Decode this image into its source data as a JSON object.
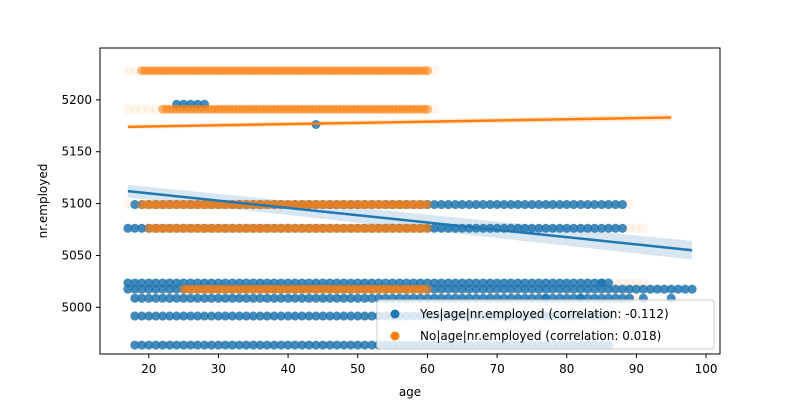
{
  "chart_data": {
    "type": "scatter",
    "title": "",
    "xlabel": "age",
    "ylabel": "nr.employed",
    "xlim": [
      13,
      102
    ],
    "ylim": [
      4955,
      5250
    ],
    "xticks": [
      20,
      30,
      40,
      50,
      60,
      70,
      80,
      90,
      100
    ],
    "yticks": [
      5000,
      5050,
      5100,
      5150,
      5200
    ],
    "grid": false,
    "legend_position": "lower-right",
    "series": [
      {
        "name": "Yes|age|nr.employed (correlation: -0.112)",
        "color": "#1f77b4",
        "bands": [
          {
            "y": 5099.1,
            "x_min": 18,
            "x_max": 88
          },
          {
            "y": 5076.2,
            "x_min": 17,
            "x_max": 88
          },
          {
            "y": 5023.5,
            "x_min": 17,
            "x_max": 86
          },
          {
            "y": 5017.5,
            "x_min": 17,
            "x_max": 98
          },
          {
            "y": 5008.7,
            "x_min": 18,
            "x_max": 89
          },
          {
            "y": 4991.6,
            "x_min": 18,
            "x_max": 86
          },
          {
            "y": 4963.6,
            "x_min": 18,
            "x_max": 86
          },
          {
            "y": 5195.8,
            "x_min": 24,
            "x_max": 28
          },
          {
            "y": 5176.3,
            "x_min": 44,
            "x_max": 44
          }
        ],
        "extra_points": [
          [
            91,
            5008.7
          ],
          [
            82,
            5008.7
          ],
          [
            77,
            5008.7
          ],
          [
            85,
            5023.5
          ],
          [
            95,
            5008.7
          ]
        ],
        "regression": {
          "x": [
            17,
            98
          ],
          "y": [
            5112,
            5055
          ],
          "ci_low": [
            5106,
            5046
          ],
          "ci_high": [
            5118,
            5064
          ]
        }
      },
      {
        "name": "No|age|nr.employed (correlation: 0.018)",
        "color": "#ff7f0e",
        "bands": [
          {
            "y": 5228.1,
            "x_min": 19,
            "x_max": 60
          },
          {
            "y": 5191.0,
            "x_min": 22,
            "x_max": 60
          },
          {
            "y": 5099.1,
            "x_min": 19,
            "x_max": 60
          },
          {
            "y": 5076.2,
            "x_min": 20,
            "x_max": 60
          },
          {
            "y": 5017.5,
            "x_min": 25,
            "x_max": 60
          }
        ],
        "faint_bands": [
          {
            "y": 5228.1,
            "x_min": 17,
            "x_max": 61
          },
          {
            "y": 5191.0,
            "x_min": 17,
            "x_max": 61
          },
          {
            "y": 5099.1,
            "x_min": 17,
            "x_max": 89
          },
          {
            "y": 5076.2,
            "x_min": 17,
            "x_max": 91
          },
          {
            "y": 5023.5,
            "x_min": 17,
            "x_max": 91
          },
          {
            "y": 5017.5,
            "x_min": 17,
            "x_max": 95
          },
          {
            "y": 5008.7,
            "x_min": 18,
            "x_max": 90
          },
          {
            "y": 4991.6,
            "x_min": 18,
            "x_max": 88
          },
          {
            "y": 4963.6,
            "x_min": 18,
            "x_max": 86
          }
        ],
        "regression": {
          "x": [
            17,
            95
          ],
          "y": [
            5174,
            5183
          ],
          "ci_low": [
            5172,
            5180
          ],
          "ci_high": [
            5176,
            5186
          ]
        }
      }
    ]
  }
}
